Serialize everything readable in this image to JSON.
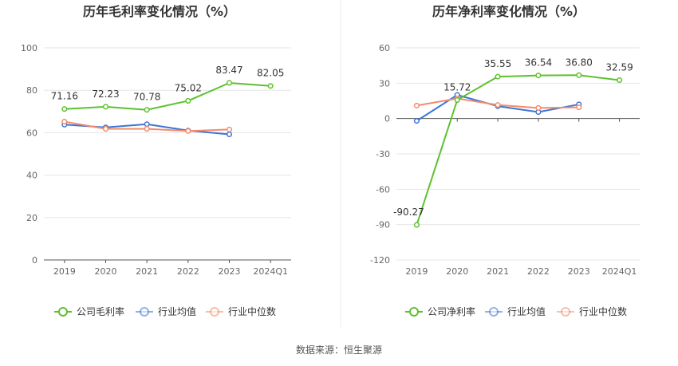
{
  "source_text": "数据来源：恒生聚源",
  "colors": {
    "company": "#5dc12e",
    "industry_avg": "#3e74d6",
    "industry_median": "#f28c6a"
  },
  "chart_data": [
    {
      "type": "line",
      "title": "历年毛利率变化情况（%）",
      "categories": [
        "2019",
        "2020",
        "2021",
        "2022",
        "2023",
        "2024Q1"
      ],
      "ylim": [
        0,
        100
      ],
      "yticks": [
        0,
        20,
        40,
        60,
        80,
        100
      ],
      "grid": true,
      "legend_position": "bottom",
      "series": [
        {
          "name": "公司毛利率",
          "key": "company",
          "values": [
            71.16,
            72.23,
            70.78,
            75.02,
            83.47,
            82.05
          ],
          "labels": [
            "71.16",
            "72.23",
            "70.78",
            "75.02",
            "83.47",
            "82.05"
          ]
        },
        {
          "name": "行业均值",
          "key": "industry_avg",
          "values": [
            63.8,
            62.5,
            64.0,
            61.0,
            59.2,
            null
          ]
        },
        {
          "name": "行业中位数",
          "key": "industry_median",
          "values": [
            65.2,
            61.8,
            61.8,
            60.8,
            61.5,
            null
          ]
        }
      ]
    },
    {
      "type": "line",
      "title": "历年净利率变化情况（%）",
      "categories": [
        "2019",
        "2020",
        "2021",
        "2022",
        "2023",
        "2024Q1"
      ],
      "ylim": [
        -120,
        60
      ],
      "yticks": [
        -120,
        -90,
        -60,
        -30,
        0,
        30,
        60
      ],
      "grid": true,
      "legend_position": "bottom",
      "series": [
        {
          "name": "公司净利率",
          "key": "company",
          "values": [
            -90.27,
            15.72,
            35.55,
            36.54,
            36.8,
            32.59
          ],
          "labels": [
            "-90.27",
            "15.72",
            "35.55",
            "36.54",
            "36.80",
            "32.59"
          ]
        },
        {
          "name": "行业均值",
          "key": "industry_avg",
          "values": [
            -2.0,
            20.0,
            10.5,
            5.5,
            12.0,
            null
          ]
        },
        {
          "name": "行业中位数",
          "key": "industry_median",
          "values": [
            11.0,
            17.0,
            11.5,
            9.0,
            9.5,
            null
          ]
        }
      ]
    }
  ]
}
